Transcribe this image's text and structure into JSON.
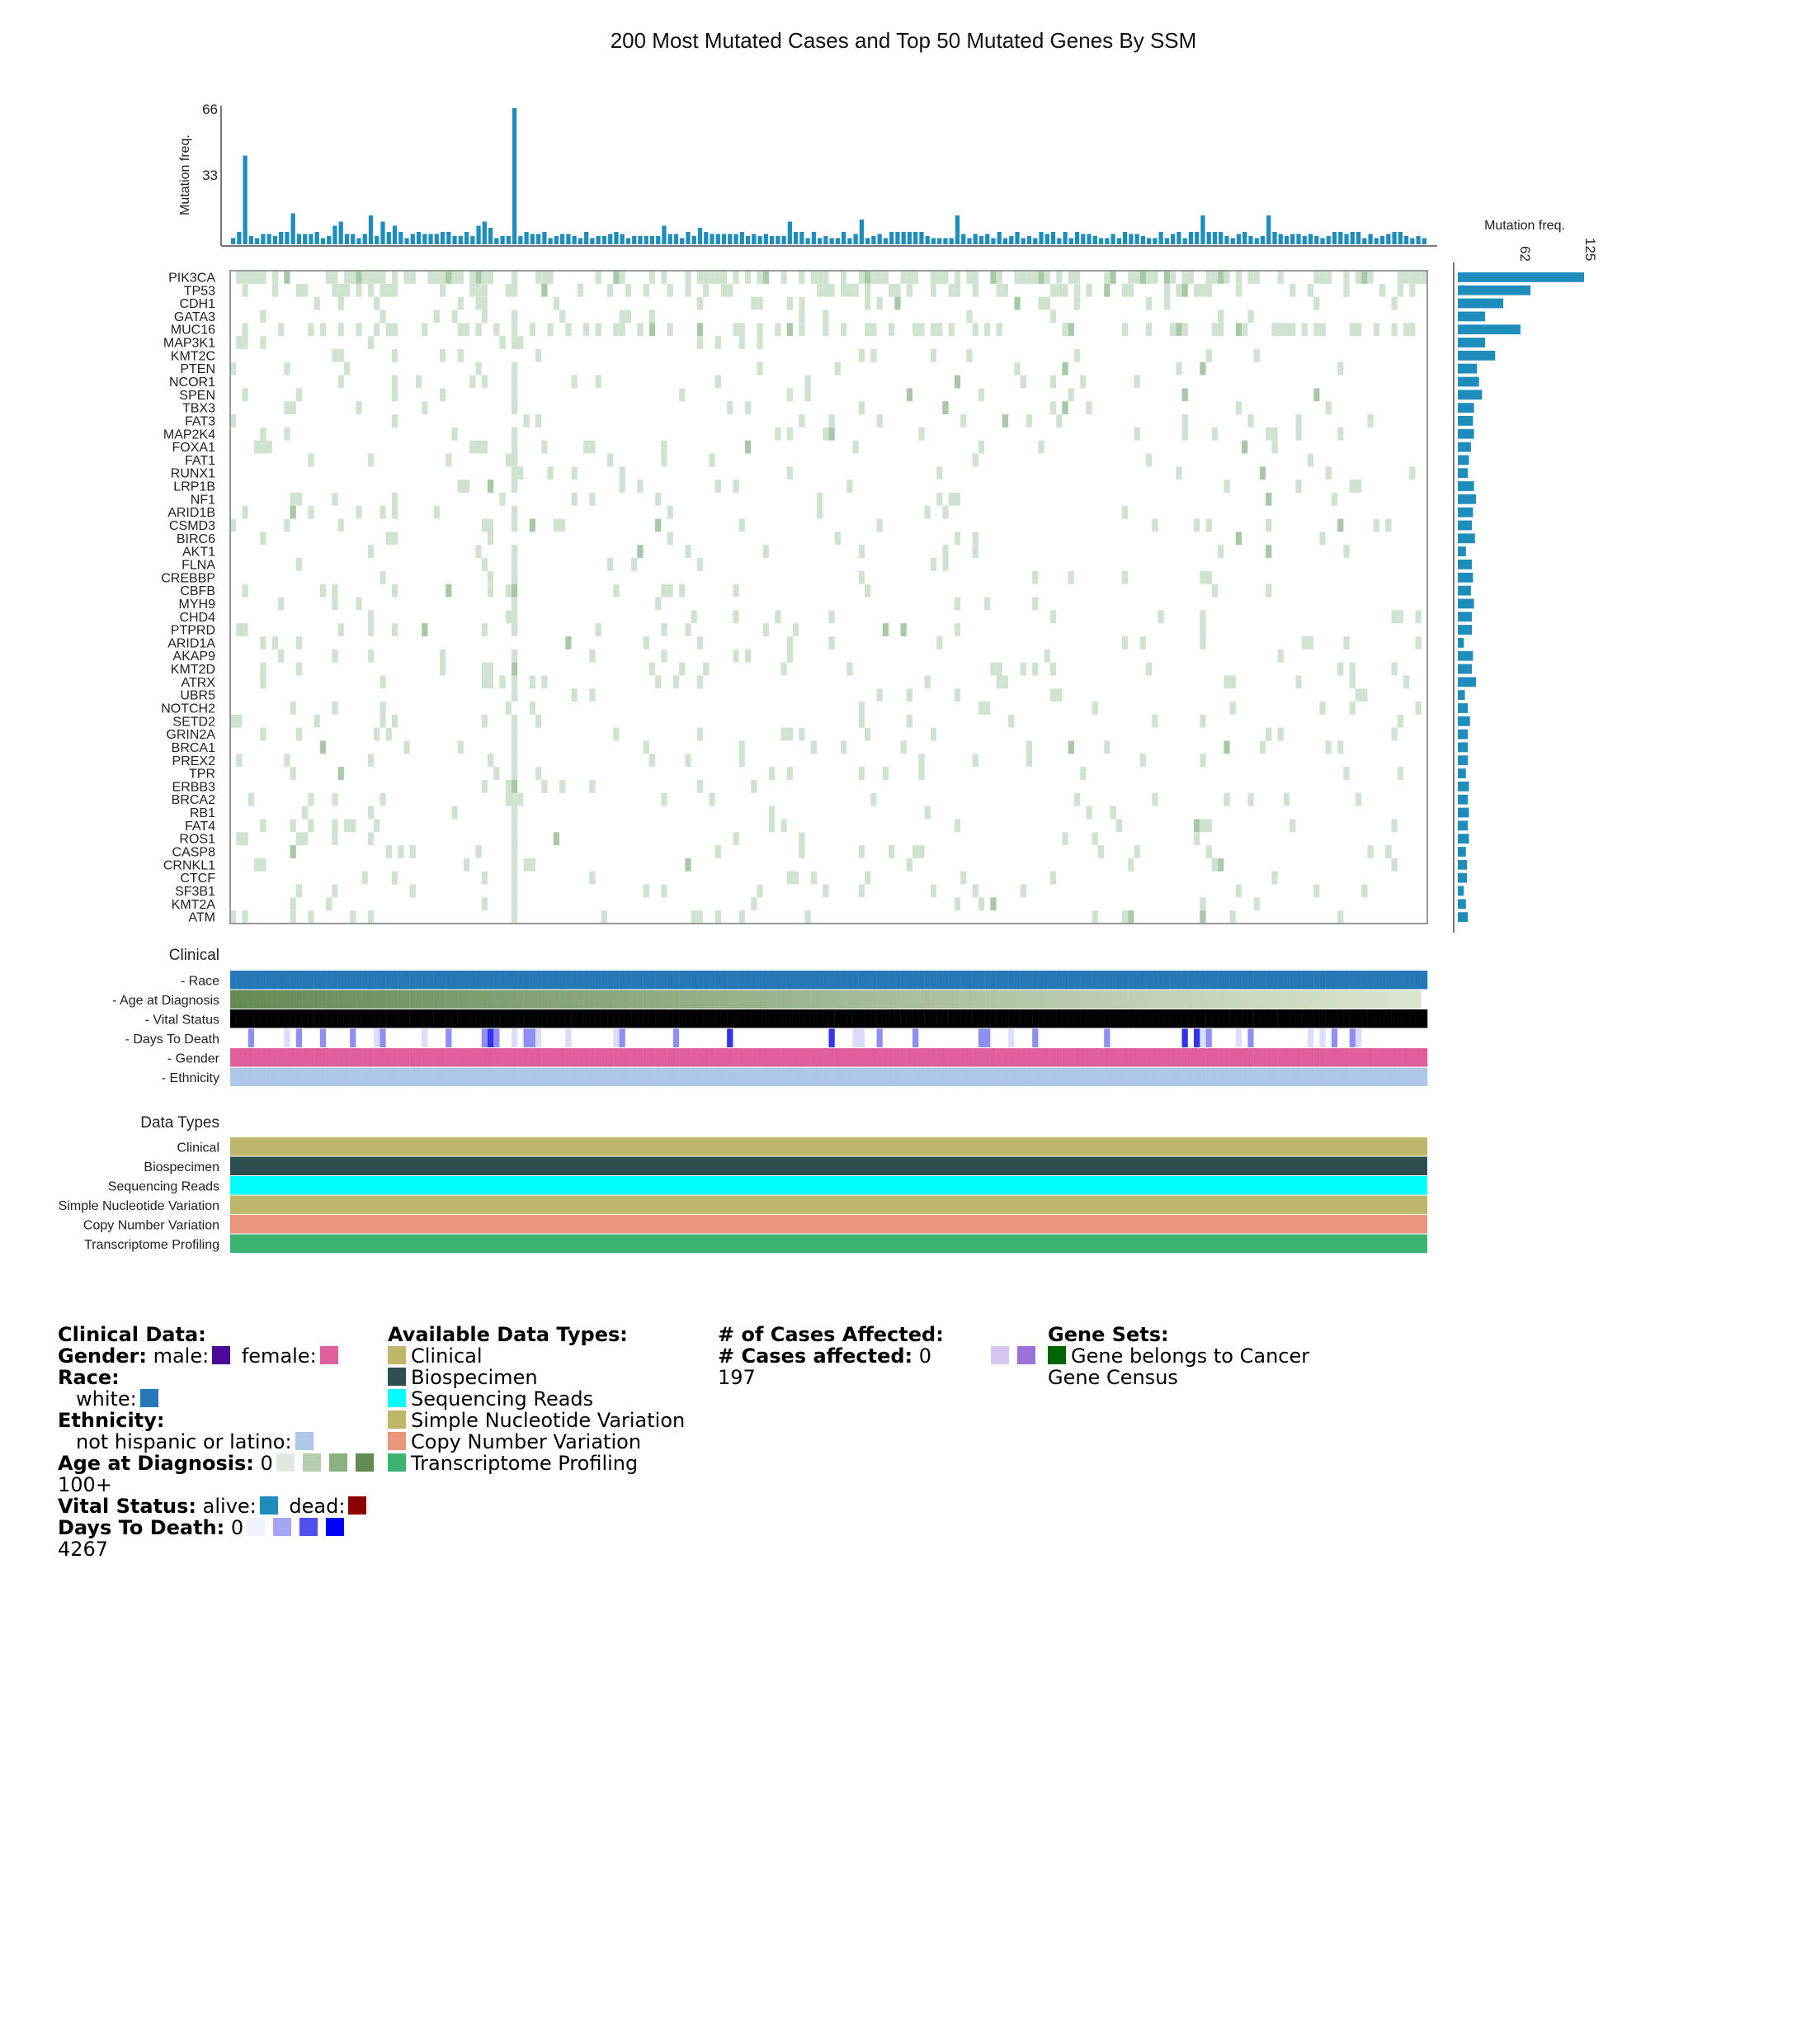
{
  "colors": {
    "bar": "#1f8dbc",
    "cell": "#d0e3d0",
    "cell_dark": "#a8c8a8",
    "race_white": "#2577b8",
    "gender_female": "#df5e9c",
    "gender_male": "#4b0a96",
    "ethnicity": "#aec7e8",
    "vital_alive": "#1f8dbc",
    "vital_dead": "#8b0000",
    "dtype_clinical": "#bdb76b",
    "dtype_biospecimen": "#2f4f4f",
    "dtype_sequencing": "#00ffff",
    "dtype_snv": "#bdb76b",
    "dtype_cnv": "#e9967a",
    "dtype_transcriptome": "#3cb371",
    "gene_census": "#006400"
  },
  "chart_data": {
    "type": "heatmap",
    "title": "200 Most Mutated Cases and Top 50 Mutated Genes By SSM",
    "top_histogram": {
      "ylabel": "Mutation freq.",
      "ticks": [
        "33",
        "66"
      ],
      "ymax": 66,
      "highlights": [
        {
          "case": 2,
          "value": 43
        },
        {
          "case": 10,
          "value": 15
        },
        {
          "case": 17,
          "value": 9
        },
        {
          "case": 18,
          "value": 11
        },
        {
          "case": 23,
          "value": 14
        },
        {
          "case": 25,
          "value": 11
        },
        {
          "case": 27,
          "value": 9
        },
        {
          "case": 41,
          "value": 9
        },
        {
          "case": 42,
          "value": 11
        },
        {
          "case": 43,
          "value": 8
        },
        {
          "case": 47,
          "value": 66
        },
        {
          "case": 72,
          "value": 9
        },
        {
          "case": 78,
          "value": 8
        },
        {
          "case": 93,
          "value": 11
        },
        {
          "case": 105,
          "value": 12
        },
        {
          "case": 121,
          "value": 14
        },
        {
          "case": 162,
          "value": 14
        },
        {
          "case": 173,
          "value": 14
        }
      ]
    },
    "genes": [
      "PIK3CA",
      "TP53",
      "CDH1",
      "GATA3",
      "MUC16",
      "MAP3K1",
      "KMT2C",
      "PTEN",
      "NCOR1",
      "SPEN",
      "TBX3",
      "FAT3",
      "MAP2K4",
      "FOXA1",
      "FAT1",
      "RUNX1",
      "LRP1B",
      "NF1",
      "ARID1B",
      "CSMD3",
      "BIRC6",
      "AKT1",
      "FLNA",
      "CREBBP",
      "CBFB",
      "MYH9",
      "CHD4",
      "PTPRD",
      "ARID1A",
      "AKAP9",
      "KMT2D",
      "ATRX",
      "UBR5",
      "NOTCH2",
      "SETD2",
      "GRIN2A",
      "BRCA1",
      "PREX2",
      "TPR",
      "ERBB3",
      "BRCA2",
      "RB1",
      "FAT4",
      "ROS1",
      "CASP8",
      "CRNKL1",
      "CTCF",
      "SF3B1",
      "KMT2A",
      "ATM"
    ],
    "gene_freq": {
      "xlabel": "Mutation freq.",
      "ticks": [
        "62",
        "125"
      ],
      "xmax": 125,
      "values": [
        125,
        72,
        45,
        27,
        62,
        27,
        37,
        19,
        21,
        24,
        16,
        15,
        16,
        13,
        11,
        10,
        16,
        18,
        15,
        14,
        17,
        8,
        14,
        15,
        13,
        16,
        14,
        14,
        6,
        15,
        14,
        18,
        7,
        10,
        12,
        10,
        10,
        10,
        8,
        11,
        10,
        11,
        10,
        11,
        8,
        9,
        9,
        6,
        8,
        10
      ]
    },
    "clinical": {
      "section": "Clinical",
      "tracks": [
        "Race",
        "Age at Diagnosis",
        "Vital Status",
        "Days To Death",
        "Gender",
        "Ethnicity"
      ]
    },
    "data_types": {
      "section": "Data Types",
      "tracks": [
        "Clinical",
        "Biospecimen",
        "Sequencing Reads",
        "Simple Nucleotide Variation",
        "Copy Number Variation",
        "Transcriptome Profiling"
      ]
    },
    "cases": 200
  },
  "legend": {
    "clinical": {
      "heading": "Clinical Data:",
      "gender_label": "Gender:",
      "male": "male:",
      "female": "female:",
      "race_label": "Race:",
      "white": "white:",
      "ethnicity_label": "Ethnicity:",
      "not_hispanic": "not hispanic or latino:",
      "age_label": "Age at Diagnosis:",
      "age_min": "0",
      "age_max": "100+",
      "vital_label": "Vital Status:",
      "alive": "alive:",
      "dead": "dead:",
      "dtd_label": "Days To Death:",
      "dtd_min": "0",
      "dtd_max": "4267"
    },
    "data_types": {
      "heading": "Available Data Types:",
      "items": [
        "Clinical",
        "Biospecimen",
        "Sequencing Reads",
        "Simple Nucleotide Variation",
        "Copy Number Variation",
        "Transcriptome Profiling"
      ]
    },
    "cases": {
      "heading": "# of Cases Affected:",
      "label": "# Cases affected:",
      "min": "0",
      "max": "197"
    },
    "gene_sets": {
      "heading": "Gene Sets:",
      "item": "Gene belongs to Cancer Gene Census"
    }
  }
}
